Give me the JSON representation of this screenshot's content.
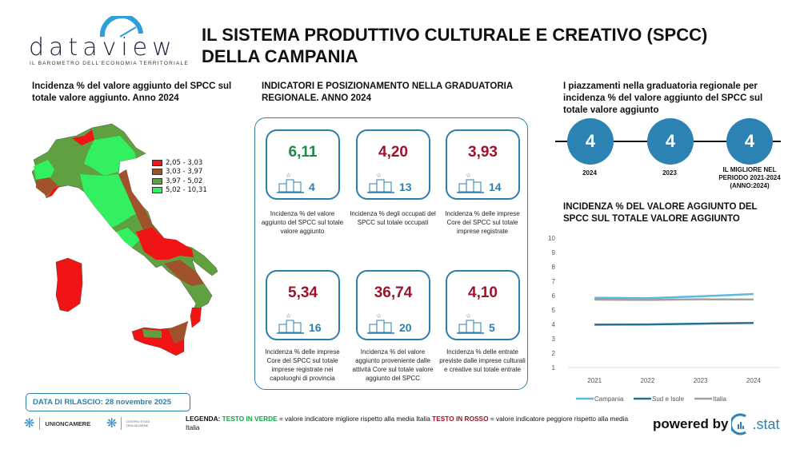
{
  "logo": {
    "brand": "dataview",
    "tagline": "IL BAROMETRO DELL'ECONOMIA TERRITORIALE"
  },
  "header": {
    "title_line1": "IL SISTEMA PRODUTTIVO CULTURALE E CREATIVO (SPCC)",
    "title_line2": "DELLA CAMPANIA"
  },
  "map": {
    "title_line1": "Incidenza % del valore aggiunto del SPCC sul",
    "title_line2": "totale valore aggiunto. Anno 2024",
    "legend": [
      {
        "label": "2,05 - 3,03",
        "color": "#f01414"
      },
      {
        "label": "3,03 - 3,97",
        "color": "#a0522d"
      },
      {
        "label": "3,97 - 5,02",
        "color": "#5fa040"
      },
      {
        "label": "5,02 - 10,31",
        "color": "#33f060"
      }
    ]
  },
  "indicators": {
    "title_line1": "INDICATORI E POSIZIONAMENTO NELLA GRADUATORIA",
    "title_line2": "REGIONALE. ANNO 2024",
    "cards": [
      {
        "value": "6,11",
        "rank": "4",
        "color": "#1a8a4a",
        "desc": "Incidenza % del valore aggiunto del SPCC sul totale valore aggiunto"
      },
      {
        "value": "4,20",
        "rank": "13",
        "color": "#a3102a",
        "desc": "Incidenza % degli occupati del SPCC sul totale occupati"
      },
      {
        "value": "3,93",
        "rank": "14",
        "color": "#a3102a",
        "desc": "Incidenza % delle imprese Core del SPCC sul totale imprese registrate"
      },
      {
        "value": "5,34",
        "rank": "16",
        "color": "#a3102a",
        "desc": "Incidenza % delle imprese Core del SPCC sul totale imprese registrate nei capoluoghi di provincia"
      },
      {
        "value": "36,74",
        "rank": "20",
        "color": "#a3102a",
        "desc": "Incidenza % del valore aggiunto proveniente dalle attività Core sul totale valore aggiunto del SPCC"
      },
      {
        "value": "4,10",
        "rank": "5",
        "color": "#a3102a",
        "desc": "Incidenza % delle entrate previste dalle imprese culturali e creative sul totale entrate"
      }
    ]
  },
  "placements": {
    "title": "I piazzamenti nella graduatoria regionale per incidenza % del valore aggiunto del SPCC sul totale valore aggiunto",
    "items": [
      {
        "value": "4",
        "label": "2024"
      },
      {
        "value": "4",
        "label": "2023"
      },
      {
        "value": "4",
        "label": "IL MIGLIORE NEL PERIODO 2021-2024 (ANNO:2024)"
      }
    ]
  },
  "chart_data": {
    "type": "line",
    "title": "INCIDENZA % DEL VALORE AGGIUNTO DEL SPCC SUL TOTALE VALORE AGGIUNTO",
    "categories": [
      "2021",
      "2022",
      "2023",
      "2024"
    ],
    "ylim": [
      1,
      10
    ],
    "yticks": [
      "1",
      "2",
      "3",
      "4",
      "5",
      "6",
      "7",
      "8",
      "9",
      "10"
    ],
    "legend_position": "bottom",
    "series": [
      {
        "name": "Campania",
        "color": "#5bb8e0",
        "values": [
          5.85,
          5.82,
          5.95,
          6.11
        ]
      },
      {
        "name": "Sud e Isole",
        "color": "#236f96",
        "values": [
          3.98,
          3.99,
          4.05,
          4.1
        ]
      },
      {
        "name": "Italia",
        "color": "#a0a0a0",
        "values": [
          5.72,
          5.7,
          5.74,
          5.73
        ]
      }
    ]
  },
  "release": {
    "label": "DATA DI RILASCIO: 28 novembre 2025"
  },
  "footer": {
    "unioncamere": "UNIONCAMERE",
    "tagliacarne": "CENTRO STUDI TAGLIACARNE",
    "legend_label": "LEGENDA:",
    "green_text": "TESTO IN VERDE",
    "green_desc": "= valore indicatore migliore rispetto alla media Italia",
    "red_text": "TESTO IN ROSSO",
    "red_desc": "= valore indicatore peggiore rispetto alla media Italia",
    "powered": "powered by",
    "stat": ".stat"
  }
}
